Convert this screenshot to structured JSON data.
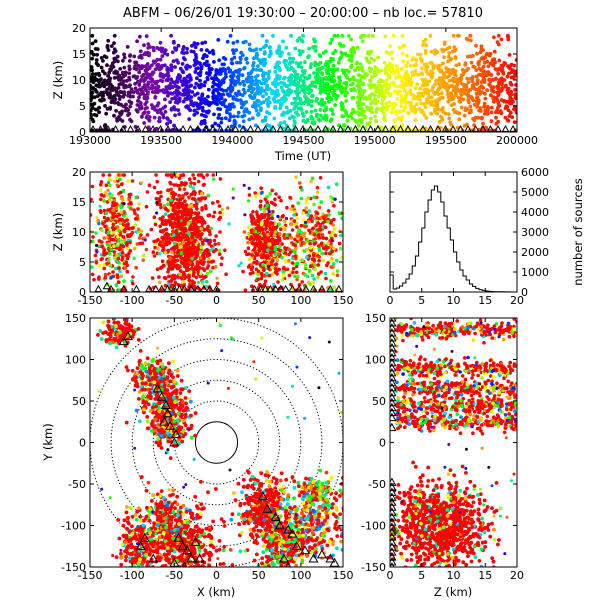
{
  "colors": {
    "time_palette": [
      "#000000",
      "#7b0aa6",
      "#0000ff",
      "#00d8ff",
      "#00ff00",
      "#ffff00",
      "#ff8c00",
      "#ff0000"
    ],
    "axis": "#000000",
    "grid_circle": "#000000"
  },
  "chart_data": [
    {
      "type": "scatter",
      "id": "time_height",
      "title": "ABFM – 06/26/01 19:30:00 – 20:00:00 – nb loc.=  57810",
      "xlabel": "Time (UT)",
      "ylabel": "Z (km)",
      "xlim": [
        193000,
        200000
      ],
      "ylim": [
        0,
        20
      ],
      "xticks": [
        "193000",
        "193500",
        "194000",
        "194500",
        "195000",
        "195500",
        "200000"
      ],
      "yticks": [
        "0",
        "5",
        "10",
        "15",
        "20"
      ],
      "color_by": "time",
      "source_density": "continuous across full time range, heights 0–18 km, densest 3–14 km",
      "station_markers": "triangles at Z=0"
    },
    {
      "type": "scatter",
      "id": "x_height",
      "xlabel": "",
      "ylabel": "Z (km)",
      "xlim": [
        -150,
        150
      ],
      "ylim": [
        0,
        20
      ],
      "xticks": [
        "-150",
        "-100",
        "-50",
        "0",
        "50",
        "100",
        "150"
      ],
      "yticks": [
        "0",
        "5",
        "10",
        "15",
        "20"
      ],
      "clusters": [
        {
          "x_range": [
            -140,
            -95
          ],
          "z_range": [
            1,
            19
          ]
        },
        {
          "x_range": [
            -75,
            5
          ],
          "z_range": [
            0,
            20
          ]
        },
        {
          "x_range": [
            35,
            80
          ],
          "z_range": [
            1,
            15
          ]
        },
        {
          "x_range": [
            80,
            148
          ],
          "z_range": [
            0,
            14
          ]
        }
      ]
    },
    {
      "type": "bar",
      "id": "height_histogram",
      "ylabel": "number of sources",
      "xlim": [
        0,
        20
      ],
      "ylim": [
        0,
        6000
      ],
      "xticks": [
        "0",
        "5",
        "10",
        "15",
        "20"
      ],
      "yticks": [
        "0",
        "1000",
        "2000",
        "3000",
        "4000",
        "5000",
        "6000"
      ],
      "bin_centers": [
        0.25,
        0.75,
        1.25,
        1.75,
        2.25,
        2.75,
        3.25,
        3.75,
        4.25,
        4.75,
        5.25,
        5.75,
        6.25,
        6.75,
        7.25,
        7.75,
        8.25,
        8.75,
        9.25,
        9.75,
        10.25,
        10.75,
        11.25,
        11.75,
        12.25,
        12.75,
        13.25,
        13.75,
        14.25,
        14.75,
        15.25,
        15.75,
        16.25,
        16.75,
        17.25,
        17.75,
        18.25,
        18.75,
        19.25,
        19.75
      ],
      "values": [
        850,
        150,
        200,
        300,
        450,
        650,
        900,
        1300,
        1800,
        2500,
        3200,
        4000,
        4600,
        5100,
        5300,
        5000,
        4500,
        3800,
        3200,
        2600,
        2000,
        1500,
        1100,
        800,
        600,
        400,
        280,
        180,
        120,
        80,
        50,
        30,
        20,
        15,
        10,
        8,
        5,
        3,
        2,
        1
      ]
    },
    {
      "type": "scatter",
      "id": "plan_view",
      "xlabel": "X (km)",
      "ylabel": "Y (km)",
      "xlim": [
        -150,
        150
      ],
      "ylim": [
        -150,
        150
      ],
      "xticks": [
        "-150",
        "-100",
        "-50",
        "0",
        "50",
        "100",
        "150"
      ],
      "yticks": [
        "-150",
        "-100",
        "-50",
        "0",
        "50",
        "100",
        "150"
      ],
      "range_rings_km": [
        25,
        50,
        75,
        100,
        125,
        150
      ],
      "solid_ring_km": 25,
      "clusters": [
        {
          "x": -120,
          "y": 135
        },
        {
          "x": -60,
          "y": 45
        },
        {
          "x": -45,
          "y": -120
        },
        {
          "x": 60,
          "y": -80
        },
        {
          "x": 120,
          "y": -120
        }
      ]
    },
    {
      "type": "scatter",
      "id": "height_y",
      "xlabel": "Z (km)",
      "ylabel": "",
      "xlim": [
        0,
        20
      ],
      "ylim": [
        -150,
        150
      ],
      "xticks": [
        "0",
        "5",
        "10",
        "15",
        "20"
      ],
      "yticks": [
        "-150",
        "-100",
        "-50",
        "0",
        "50",
        "100",
        "150"
      ],
      "bands_y": [
        135,
        90,
        65,
        45,
        25
      ],
      "lower_cluster": {
        "y_range": [
          -150,
          -50
        ],
        "z_range": [
          0,
          18
        ]
      }
    }
  ]
}
